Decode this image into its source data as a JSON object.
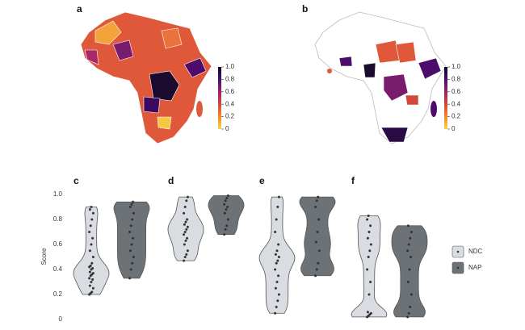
{
  "chart_data": [
    {
      "type": "choropleth",
      "panel": "a",
      "clim": [
        0,
        1
      ],
      "cticks": [
        {
          "value": 1,
          "label": "1.0"
        },
        0.8,
        0.6,
        0.4,
        0.2,
        0
      ],
      "colors": [
        "#f6d746",
        "#f08a2c",
        "#d4483b",
        "#9b2564",
        "#4b0c6b",
        "#0d0829"
      ]
    },
    {
      "type": "choropleth",
      "panel": "b",
      "clim": [
        0,
        1
      ],
      "cticks": [
        {
          "value": 1,
          "label": "1.0"
        },
        0.8,
        0.6,
        0.4,
        0.2,
        0
      ],
      "colors": [
        "#f6d746",
        "#f08a2c",
        "#d4483b",
        "#9b2564",
        "#4b0c6b",
        "#0d0829"
      ]
    },
    {
      "type": "violin",
      "panel": "c",
      "ylabel": "Score",
      "ylim": [
        0,
        1
      ],
      "yticks": [
        0,
        0.2,
        0.4,
        0.6,
        0.8,
        {
          "value": 1,
          "label": "1.0"
        }
      ],
      "series": [
        {
          "color": "#d9dde2",
          "values": [
            0.2,
            0.21,
            0.22,
            0.25,
            0.27,
            0.3,
            0.32,
            0.33,
            0.35,
            0.36,
            0.37,
            0.38,
            0.4,
            0.41,
            0.42,
            0.43,
            0.45,
            0.5,
            0.55,
            0.6,
            0.65,
            0.7,
            0.75,
            0.8,
            0.85,
            0.88,
            0.9
          ]
        },
        {
          "color": "#6d7276",
          "values": [
            0.33,
            0.4,
            0.45,
            0.5,
            0.55,
            0.6,
            0.65,
            0.7,
            0.75,
            0.8,
            0.85,
            0.9,
            0.92,
            0.94
          ]
        }
      ]
    },
    {
      "type": "violin",
      "panel": "d",
      "ylim": [
        0,
        1
      ],
      "series": [
        {
          "color": "#d9dde2",
          "values": [
            0.47,
            0.5,
            0.52,
            0.55,
            0.6,
            0.63,
            0.65,
            0.68,
            0.7,
            0.72,
            0.74,
            0.76,
            0.78,
            0.8,
            0.85,
            0.9,
            0.95,
            0.98
          ]
        },
        {
          "color": "#6d7276",
          "values": [
            0.68,
            0.72,
            0.75,
            0.8,
            0.85,
            0.88,
            0.9,
            0.92,
            0.95,
            0.97,
            0.99
          ]
        }
      ]
    },
    {
      "type": "violin",
      "panel": "e",
      "ylim": [
        0,
        1
      ],
      "series": [
        {
          "color": "#d9dde2",
          "values": [
            0.05,
            0.1,
            0.15,
            0.2,
            0.25,
            0.3,
            0.35,
            0.4,
            0.45,
            0.47,
            0.5,
            0.52,
            0.55,
            0.6,
            0.7,
            0.8,
            0.9,
            0.98
          ]
        },
        {
          "color": "#6d7276",
          "values": [
            0.35,
            0.4,
            0.45,
            0.55,
            0.62,
            0.7,
            0.8,
            0.9,
            0.95,
            0.98
          ]
        }
      ]
    },
    {
      "type": "violin",
      "panel": "f",
      "ylim": [
        0,
        1
      ],
      "legend": "right",
      "series": [
        {
          "name": "NDC",
          "color": "#d9dde2",
          "values": [
            0.02,
            0.03,
            0.04,
            0.05,
            0.06,
            0.2,
            0.3,
            0.4,
            0.5,
            0.55,
            0.6,
            0.65,
            0.7,
            0.75,
            0.8,
            0.83
          ]
        },
        {
          "name": "NAP",
          "color": "#6d7276",
          "values": [
            0.02,
            0.05,
            0.1,
            0.2,
            0.3,
            0.4,
            0.5,
            0.55,
            0.6,
            0.65,
            0.7,
            0.75
          ]
        }
      ]
    }
  ]
}
